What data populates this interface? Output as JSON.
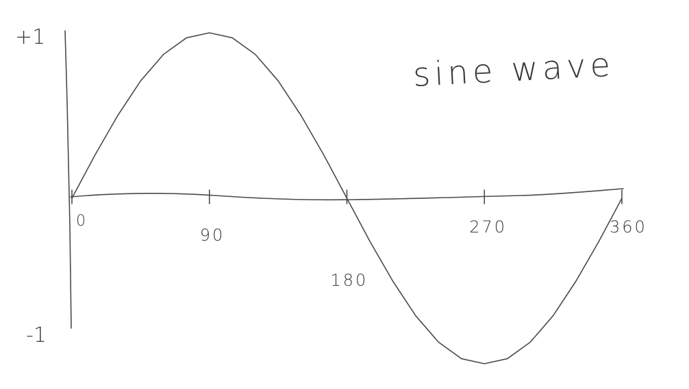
{
  "chart_data": {
    "type": "line",
    "title": "sine wave",
    "xlabel": "",
    "ylabel": "",
    "x_ticks": [
      0,
      90,
      180,
      270,
      360
    ],
    "x_tick_labels": [
      "0",
      "90",
      "180",
      "270",
      "360"
    ],
    "y_tick_labels": {
      "top": "+1",
      "bottom": "-1"
    },
    "xlim": [
      0,
      360
    ],
    "ylim": [
      -1,
      1
    ],
    "grid": false,
    "series": [
      {
        "x": [
          0,
          15,
          30,
          45,
          60,
          75,
          90,
          105,
          120,
          135,
          150,
          165,
          180,
          195,
          210,
          225,
          240,
          255,
          270,
          285,
          300,
          315,
          330,
          345,
          360
        ],
        "values": [
          0,
          0.26,
          0.5,
          0.71,
          0.87,
          0.97,
          1,
          0.97,
          0.87,
          0.71,
          0.5,
          0.26,
          0,
          -0.26,
          -0.5,
          -0.71,
          -0.87,
          -0.97,
          -1,
          -0.97,
          -0.87,
          -0.71,
          -0.5,
          -0.26,
          0
        ]
      }
    ],
    "colors": {
      "ink": "#4a4a4a",
      "background": "#ffffff"
    }
  }
}
